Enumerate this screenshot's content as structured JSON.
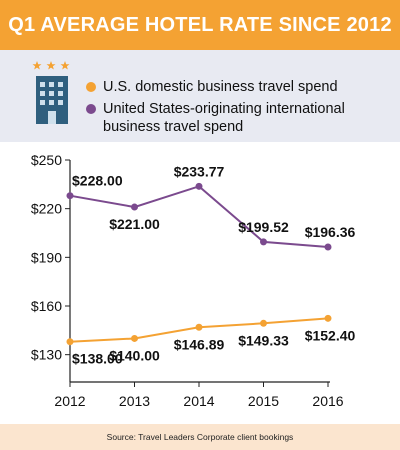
{
  "title": "Q1 AVERAGE HOTEL RATE SINCE 2012",
  "legend": [
    {
      "label": "U.S. domestic business travel spend",
      "color": "#f4a233"
    },
    {
      "label": "United States-originating international business travel spend",
      "color": "#7b4a8e"
    }
  ],
  "source": "Source: Travel Leaders Corporate client bookings",
  "icon": "hotel-building-icon",
  "chart_data": {
    "type": "line",
    "title": "Q1 AVERAGE HOTEL RATE SINCE 2012",
    "x": [
      "2012",
      "2013",
      "2014",
      "2015",
      "2016"
    ],
    "ylim": [
      130,
      250
    ],
    "yticks": [
      250,
      220,
      190,
      160,
      130
    ],
    "ytick_labels": [
      "$250",
      "$220",
      "$190",
      "$160",
      "$130"
    ],
    "series": [
      {
        "name": "United States-originating international business travel spend",
        "color": "#7b4a8e",
        "values": [
          228.0,
          221.0,
          233.77,
          199.52,
          196.36
        ],
        "labels": [
          "$228.00",
          "$221.00",
          "$233.77",
          "$199.52",
          "$196.36"
        ]
      },
      {
        "name": "U.S. domestic business travel spend",
        "color": "#f4a233",
        "values": [
          138.0,
          140.0,
          146.89,
          149.33,
          152.4
        ],
        "labels": [
          "$138.00",
          "$140.00",
          "$146.89",
          "$149.33",
          "$152.40"
        ]
      }
    ]
  }
}
